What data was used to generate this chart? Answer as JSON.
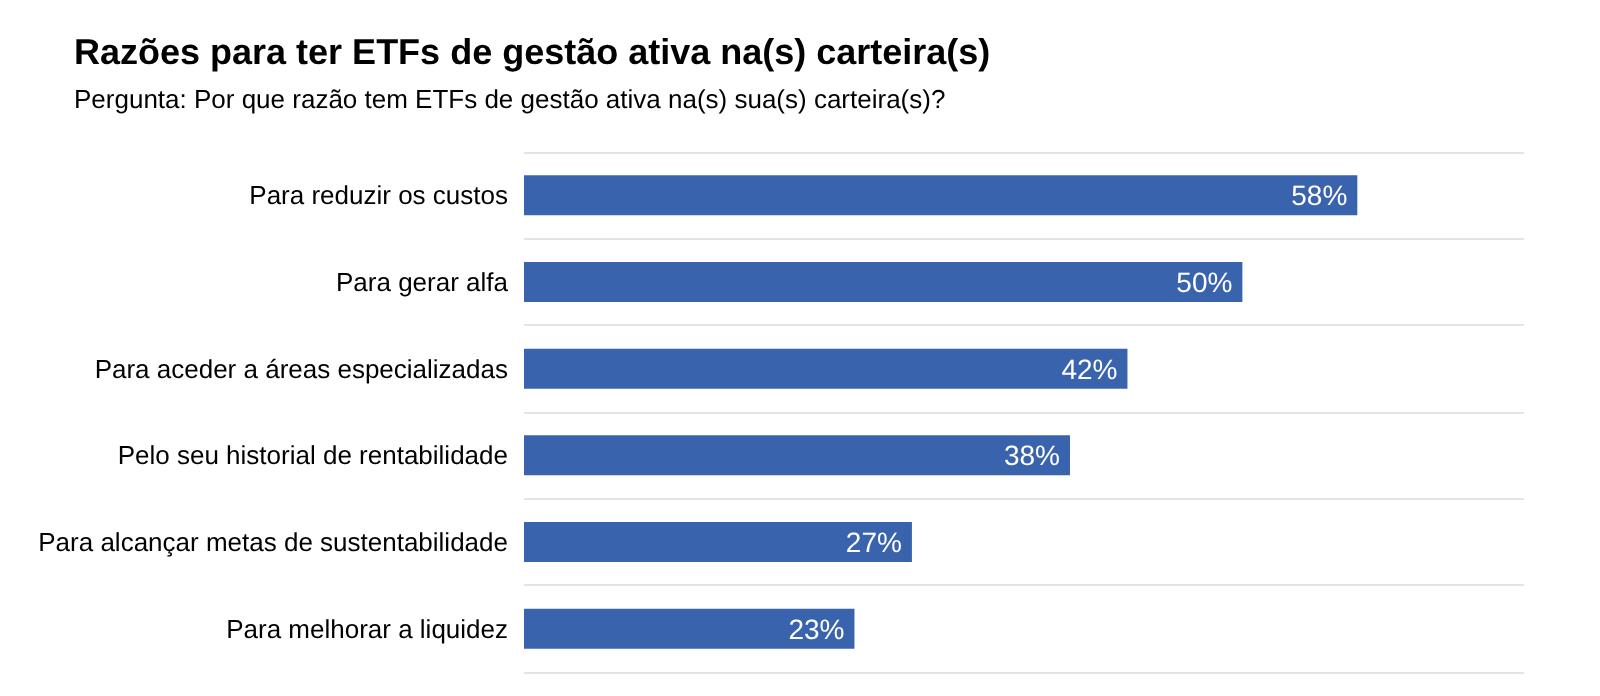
{
  "chart_data": {
    "type": "bar",
    "orientation": "horizontal",
    "title": "Razões para ter ETFs de gestão ativa na(s) carteira(s)",
    "subtitle": "Pergunta: Por que razão tem ETFs de gestão ativa na(s) sua(s) carteira(s)?",
    "categories": [
      "Para reduzir os custos",
      "Para gerar alfa",
      "Para aceder a áreas especializadas",
      "Pelo seu historial de rentabilidade",
      "Para alcançar metas de sustentabilidade",
      "Para melhorar a liquidez"
    ],
    "values": [
      58,
      50,
      42,
      38,
      27,
      23
    ],
    "value_labels": [
      "58%",
      "50%",
      "42%",
      "38%",
      "27%",
      "23%"
    ],
    "color": "#3a63ad",
    "grid": "y",
    "tick_labels": "y"
  }
}
